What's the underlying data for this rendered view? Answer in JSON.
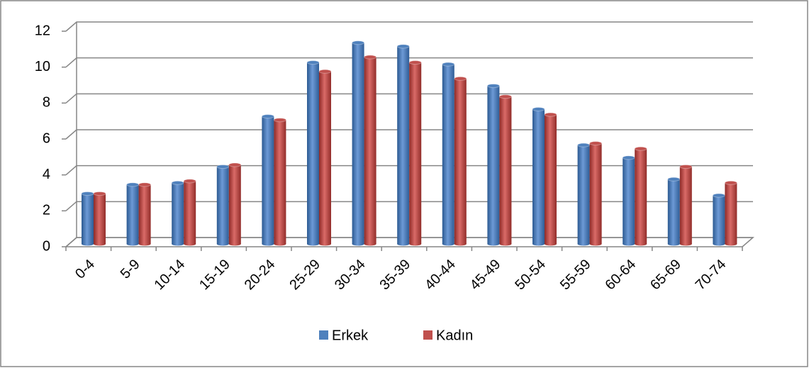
{
  "chart_data": {
    "type": "bar",
    "categories": [
      "0-4",
      "5-9",
      "10-14",
      "15-19",
      "20-24",
      "25-29",
      "30-34",
      "35-39",
      "40-44",
      "45-49",
      "50-54",
      "55-59",
      "60-64",
      "65-69",
      "70-74"
    ],
    "series": [
      {
        "name": "Erkek",
        "color": "#4f81bd",
        "values": [
          2.8,
          3.3,
          3.4,
          4.3,
          7.1,
          10.1,
          11.2,
          11.0,
          10.0,
          8.8,
          7.5,
          5.5,
          4.8,
          3.6,
          2.7
        ]
      },
      {
        "name": "Kadın",
        "color": "#c0504d",
        "values": [
          2.8,
          3.3,
          3.5,
          4.4,
          6.9,
          9.6,
          10.4,
          10.1,
          9.2,
          8.2,
          7.2,
          5.6,
          5.3,
          4.3,
          3.4
        ]
      }
    ],
    "ylim": [
      0,
      12
    ],
    "yticks": [
      0,
      2,
      4,
      6,
      8,
      10,
      12
    ],
    "grid": true,
    "legend": "bottom"
  }
}
